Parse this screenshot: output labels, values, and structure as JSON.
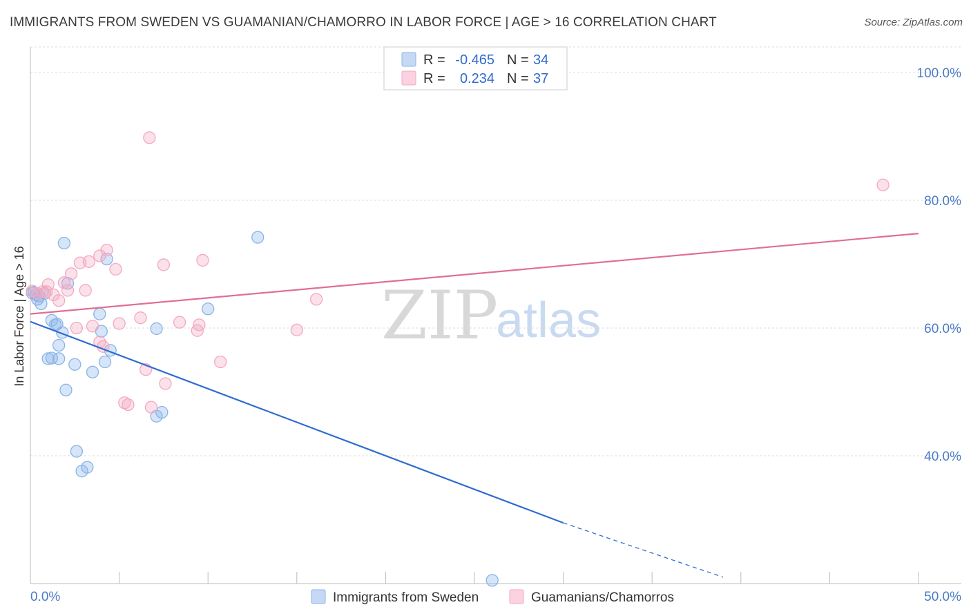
{
  "title": "IMMIGRANTS FROM SWEDEN VS GUAMANIAN/CHAMORRO IN LABOR FORCE | AGE > 16 CORRELATION CHART",
  "source": "Source: ZipAtlas.com",
  "watermark": {
    "zip": "ZIP",
    "atlas": "atlas"
  },
  "legend": {
    "series": [
      {
        "r_label": "R =",
        "r_value": "-0.465",
        "n_label": "N =",
        "n_value": "34"
      },
      {
        "r_label": "R =",
        "r_value": "0.234",
        "n_label": "N =",
        "n_value": "37"
      }
    ]
  },
  "chart_data": {
    "type": "scatter",
    "title": "IMMIGRANTS FROM SWEDEN VS GUAMANIAN/CHAMORRO IN LABOR FORCE | AGE > 16 CORRELATION CHART",
    "xlabel": "",
    "ylabel": "In Labor Force | Age > 16",
    "xlim": [
      0,
      50
    ],
    "ylim": [
      20,
      104
    ],
    "x_tick_labels": [
      "0.0%",
      "50.0%"
    ],
    "y_ticks": [
      40,
      60,
      80,
      100
    ],
    "y_tick_labels": [
      "40.0%",
      "60.0%",
      "80.0%",
      "100.0%"
    ],
    "series": [
      {
        "name": "Immigrants from Sweden",
        "color": "#8ab4e8",
        "line_color": "#2f6bd0",
        "trend": {
          "x0": 0,
          "y0": 61.0,
          "x1": 30,
          "y1": 29.5,
          "dash_to_x": 39,
          "dash_to_y": 21.0
        },
        "points": [
          [
            0.1,
            65.5
          ],
          [
            0.3,
            65.2
          ],
          [
            0.4,
            64.5
          ],
          [
            0.6,
            63.8
          ],
          [
            1.2,
            61.2
          ],
          [
            1.4,
            60.5
          ],
          [
            1.8,
            59.3
          ],
          [
            1.6,
            57.3
          ],
          [
            1.0,
            55.2
          ],
          [
            1.2,
            55.3
          ],
          [
            1.6,
            55.2
          ],
          [
            2.0,
            50.3
          ],
          [
            2.5,
            54.3
          ],
          [
            3.5,
            53.1
          ],
          [
            4.5,
            56.5
          ],
          [
            4.2,
            54.7
          ],
          [
            4.0,
            59.5
          ],
          [
            3.9,
            62.2
          ],
          [
            2.1,
            67.0
          ],
          [
            1.9,
            73.3
          ],
          [
            4.3,
            70.8
          ],
          [
            7.1,
            59.9
          ],
          [
            7.4,
            46.8
          ],
          [
            7.1,
            46.2
          ],
          [
            2.6,
            40.7
          ],
          [
            3.2,
            38.2
          ],
          [
            2.9,
            37.6
          ],
          [
            10.0,
            63.0
          ],
          [
            12.8,
            74.2
          ],
          [
            26.0,
            20.5
          ],
          [
            0.2,
            65.6
          ],
          [
            0.5,
            65.0
          ],
          [
            0.8,
            65.4
          ],
          [
            1.5,
            60.6
          ]
        ]
      },
      {
        "name": "Guamanians/Chamorros",
        "color": "#f4a8c0",
        "line_color": "#e06e97",
        "trend": {
          "x0": 0,
          "y0": 62.2,
          "x1": 50,
          "y1": 74.8
        },
        "points": [
          [
            0.1,
            65.8
          ],
          [
            0.4,
            65.4
          ],
          [
            0.7,
            65.7
          ],
          [
            1.0,
            66.8
          ],
          [
            1.3,
            65.2
          ],
          [
            1.6,
            64.3
          ],
          [
            1.9,
            67.1
          ],
          [
            2.1,
            65.9
          ],
          [
            2.3,
            68.5
          ],
          [
            2.8,
            70.2
          ],
          [
            3.1,
            65.9
          ],
          [
            3.3,
            70.4
          ],
          [
            2.6,
            60.0
          ],
          [
            3.5,
            60.3
          ],
          [
            3.9,
            57.8
          ],
          [
            4.1,
            57.1
          ],
          [
            4.3,
            72.2
          ],
          [
            4.8,
            69.2
          ],
          [
            5.0,
            60.7
          ],
          [
            3.9,
            71.3
          ],
          [
            6.2,
            61.6
          ],
          [
            6.5,
            53.5
          ],
          [
            6.8,
            47.6
          ],
          [
            7.6,
            51.3
          ],
          [
            7.5,
            69.9
          ],
          [
            8.4,
            60.9
          ],
          [
            9.4,
            59.6
          ],
          [
            9.5,
            60.5
          ],
          [
            9.7,
            70.6
          ],
          [
            10.7,
            54.7
          ],
          [
            15.0,
            59.7
          ],
          [
            16.1,
            64.5
          ],
          [
            6.7,
            89.8
          ],
          [
            48.0,
            82.4
          ],
          [
            5.3,
            48.3
          ],
          [
            5.5,
            48.0
          ],
          [
            0.9,
            65.7
          ]
        ]
      }
    ]
  }
}
